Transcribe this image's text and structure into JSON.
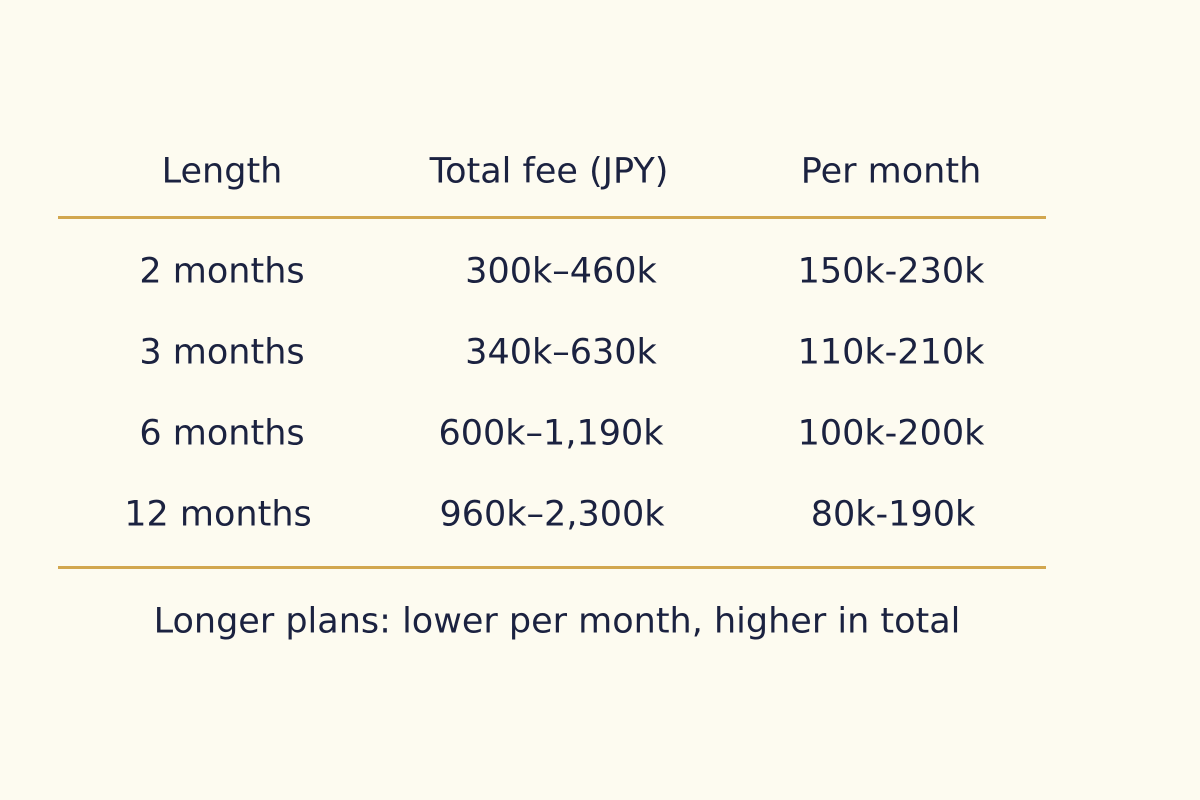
{
  "table": {
    "headers": [
      "Length",
      "Total fee (JPY)",
      "Per month"
    ],
    "rows": [
      [
        "2 months",
        "300k–460k",
        "150k-230k"
      ],
      [
        "3 months",
        "340k–630k",
        "110k-210k"
      ],
      [
        "6 months",
        "600k–1,190k",
        "100k-200k"
      ],
      [
        "12 months",
        "960k–2,300k",
        "80k-190k"
      ]
    ]
  },
  "note": "Longer plans: lower per month, higher in total",
  "colors": {
    "background": "#fdfbf0",
    "text": "#1b2240",
    "rule": "#d2a74f"
  }
}
